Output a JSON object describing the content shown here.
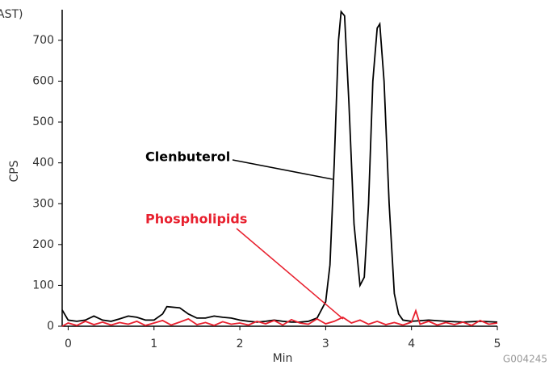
{
  "chart_data": {
    "type": "line",
    "title": "AST)",
    "x_label": "Min",
    "y_label": "CPS",
    "footnote": "G004245",
    "xlim": [
      -0.07,
      5
    ],
    "xticks": [
      0,
      1,
      2,
      3,
      4,
      5
    ],
    "ylim": [
      0,
      775
    ],
    "yticks": [
      0,
      100,
      200,
      300,
      400,
      500,
      600,
      700
    ],
    "series": [
      {
        "name": "Clenbuterol",
        "color": "#000000",
        "x": [
          -0.07,
          0,
          0.1,
          0.2,
          0.3,
          0.4,
          0.5,
          0.6,
          0.7,
          0.8,
          0.9,
          1.0,
          1.1,
          1.15,
          1.3,
          1.4,
          1.5,
          1.6,
          1.7,
          1.8,
          1.9,
          2.0,
          2.1,
          2.2,
          2.3,
          2.4,
          2.5,
          2.6,
          2.7,
          2.8,
          2.9,
          3.0,
          3.05,
          3.1,
          3.15,
          3.18,
          3.22,
          3.27,
          3.33,
          3.4,
          3.45,
          3.5,
          3.55,
          3.6,
          3.63,
          3.68,
          3.74,
          3.8,
          3.85,
          3.9,
          4.0,
          4.2,
          4.4,
          4.6,
          4.8,
          5.0
        ],
        "values": [
          40,
          15,
          12,
          15,
          25,
          15,
          12,
          18,
          25,
          22,
          15,
          15,
          30,
          48,
          45,
          30,
          20,
          20,
          25,
          22,
          20,
          15,
          12,
          10,
          12,
          15,
          12,
          10,
          10,
          12,
          20,
          60,
          150,
          400,
          700,
          770,
          760,
          550,
          250,
          100,
          120,
          300,
          600,
          730,
          740,
          600,
          300,
          80,
          30,
          15,
          12,
          15,
          12,
          10,
          12,
          10
        ]
      },
      {
        "name": "Phospholipids",
        "color": "#e8202e",
        "x": [
          -0.07,
          0,
          0.1,
          0.2,
          0.3,
          0.4,
          0.5,
          0.6,
          0.7,
          0.8,
          0.9,
          1.0,
          1.1,
          1.2,
          1.3,
          1.4,
          1.5,
          1.6,
          1.7,
          1.8,
          1.9,
          2.0,
          2.1,
          2.2,
          2.3,
          2.4,
          2.5,
          2.6,
          2.7,
          2.8,
          2.9,
          3.0,
          3.1,
          3.2,
          3.3,
          3.4,
          3.5,
          3.6,
          3.7,
          3.8,
          3.9,
          4.0,
          4.05,
          4.1,
          4.2,
          4.3,
          4.4,
          4.5,
          4.6,
          4.7,
          4.8,
          4.9,
          5.0
        ],
        "values": [
          0,
          8,
          2,
          12,
          4,
          10,
          3,
          9,
          5,
          12,
          2,
          8,
          14,
          3,
          10,
          18,
          4,
          9,
          2,
          11,
          5,
          8,
          3,
          12,
          6,
          14,
          3,
          16,
          8,
          5,
          18,
          6,
          12,
          22,
          8,
          15,
          5,
          12,
          4,
          9,
          3,
          10,
          38,
          5,
          12,
          3,
          9,
          4,
          10,
          2,
          14,
          5,
          8
        ]
      }
    ]
  }
}
